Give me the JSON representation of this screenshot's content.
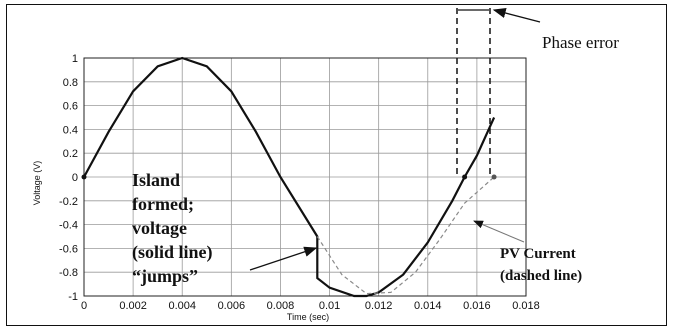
{
  "chart_data": {
    "type": "line",
    "title": "",
    "xlabel": "Time (sec)",
    "ylabel": "Voltage (V)",
    "xlim": [
      0,
      0.018
    ],
    "ylim": [
      -1,
      1
    ],
    "grid": true,
    "x_ticks": [
      0,
      0.002,
      0.004,
      0.006,
      0.008,
      0.01,
      0.012,
      0.014,
      0.016,
      0.018
    ],
    "x_tick_labels": [
      "0",
      "0.002",
      "0.004",
      "0.006",
      "0.008",
      "0.01",
      "0.012",
      "0.014",
      "0.016",
      "0.018"
    ],
    "y_ticks": [
      1,
      0.8,
      0.6,
      0.4,
      0.2,
      0,
      -0.2,
      -0.4,
      -0.6,
      -0.8,
      -1
    ],
    "y_tick_labels": [
      "1",
      "0.8",
      "0.6",
      "0.4",
      "0.2",
      "0",
      "-0.2",
      "-0.4",
      "-0.6",
      "-0.8",
      "-1"
    ],
    "series": [
      {
        "style": "solid",
        "x": [
          0,
          0.001,
          0.002,
          0.003,
          0.004,
          0.005,
          0.006,
          0.007,
          0.008,
          0.0095,
          0.0095,
          0.01,
          0.011,
          0.0115,
          0.012,
          0.013,
          0.014,
          0.015,
          0.0155,
          0.016,
          0.0167
        ],
        "y": [
          0,
          0.38,
          0.72,
          0.93,
          1.0,
          0.93,
          0.72,
          0.38,
          0.0,
          -0.5,
          -0.85,
          -0.93,
          -1.0,
          -1.0,
          -0.97,
          -0.82,
          -0.55,
          -0.2,
          0.0,
          0.18,
          0.5
        ]
      },
      {
        "style": "dashed",
        "x": [
          0.0095,
          0.0105,
          0.0115,
          0.0125,
          0.0135,
          0.0145,
          0.0155,
          0.0167
        ],
        "y": [
          -0.5,
          -0.82,
          -0.98,
          -0.97,
          -0.8,
          -0.52,
          -0.22,
          0.0
        ]
      }
    ],
    "annotations": {
      "island_lines": [
        "Island",
        "formed;",
        "voltage",
        "(solid line)",
        "“jumps”"
      ],
      "pv_lines": [
        "PV Current",
        "(dashed line)"
      ],
      "phase_error": "Phase error"
    }
  }
}
